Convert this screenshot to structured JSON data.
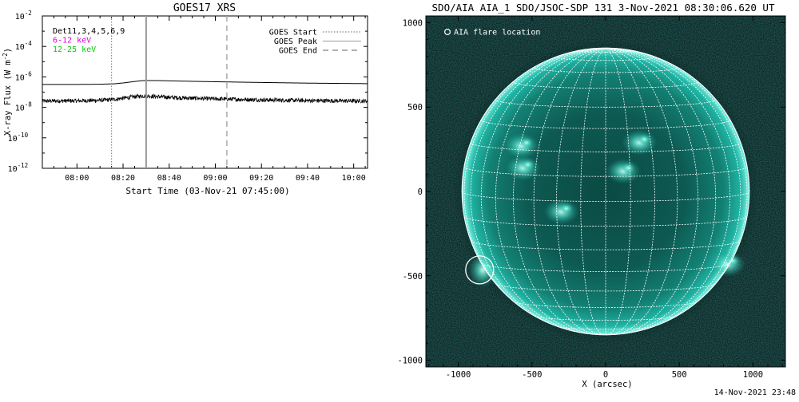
{
  "stamp": "14-Nov-2021 23:48",
  "chart_data": [
    {
      "type": "line",
      "title": "GOES17 XRS",
      "xlabel": "Start Time (03-Nov-21 07:45:00)",
      "ylabel": "X-ray Flux (W m⁻²)",
      "ylabel_base": "X-ray Flux (W m",
      "ylabel_exp": "-2",
      "ylabel_close": ")",
      "log_scale": true,
      "xlim": [
        "07:45",
        "10:06"
      ],
      "ylim": [
        1e-12,
        0.01
      ],
      "x_ticks": [
        "08:00",
        "08:20",
        "08:40",
        "09:00",
        "09:20",
        "09:40",
        "10:00"
      ],
      "y_ticks": [
        {
          "base": "10",
          "exp": "-2",
          "value": 0.01
        },
        {
          "base": "10",
          "exp": "-4",
          "value": 0.0001
        },
        {
          "base": "10",
          "exp": "-6",
          "value": 1e-06
        },
        {
          "base": "10",
          "exp": "-8",
          "value": 1e-08
        },
        {
          "base": "10",
          "exp": "-10",
          "value": 1e-10
        },
        {
          "base": "10",
          "exp": "-12",
          "value": 1e-12
        }
      ],
      "energy_legend": [
        {
          "label": "Det11,3,4,5,6,9",
          "color": "#000000"
        },
        {
          "label": "6-12 keV",
          "color": "#dd00dd"
        },
        {
          "label": "12-25 keV",
          "color": "#00cc00"
        }
      ],
      "marker_legend": [
        {
          "label": "GOES Start",
          "style": "dotted"
        },
        {
          "label": "GOES Peak",
          "style": "solid"
        },
        {
          "label": "GOES End",
          "style": "dashed"
        }
      ],
      "markers": {
        "start": "08:15",
        "peak": "08:30",
        "end": "09:05"
      },
      "series": [
        {
          "name": "",
          "channel": "long",
          "x": [
            "07:45",
            "08:00",
            "08:10",
            "08:16",
            "08:20",
            "08:25",
            "08:28",
            "08:30",
            "08:35",
            "08:45",
            "09:00",
            "09:20",
            "09:40",
            "10:06"
          ],
          "y": [
            3.2e-07,
            3.2e-07,
            3.3e-07,
            3.5e-07,
            4e-07,
            5e-07,
            5.6e-07,
            5.8e-07,
            5.7e-07,
            5.3e-07,
            4.8e-07,
            4.3e-07,
            3.9e-07,
            3.6e-07
          ]
        },
        {
          "name": "",
          "channel": "short",
          "x": [
            "07:45",
            "08:00",
            "08:10",
            "08:16",
            "08:20",
            "08:25",
            "08:28",
            "08:30",
            "08:35",
            "08:45",
            "09:00",
            "09:20",
            "09:40",
            "10:06"
          ],
          "y": [
            2.6e-08,
            2.7e-08,
            2.9e-08,
            3.3e-08,
            4e-08,
            5e-08,
            5.5e-08,
            5.6e-08,
            5e-08,
            4.2e-08,
            3.6e-08,
            3.1e-08,
            2.8e-08,
            2.6e-08
          ]
        }
      ]
    },
    {
      "type": "image",
      "title": "SDO/AIA AIA_1 SDO/JSOC-SDP 131  3-Nov-2021 08:30:06.620 UT",
      "xlabel": "X (arcsec)",
      "ylabel": "",
      "xlim": [
        -1220,
        1220
      ],
      "ylim": [
        -1040,
        1040
      ],
      "x_ticks": [
        -1000,
        -500,
        0,
        500,
        1000
      ],
      "y_ticks": [
        1000,
        500,
        0,
        -500,
        -1000
      ],
      "legend": "AIA flare location",
      "solar_radius_arcsec": 975,
      "flare_location": {
        "x": -855,
        "y": -465,
        "radius": 95
      },
      "colors": {
        "disk": "#00c8b4",
        "background": "#031414",
        "grid": "#ffffff"
      },
      "active_regions": [
        {
          "x": 230,
          "y": 290
        },
        {
          "x": -570,
          "y": 270
        },
        {
          "x": 830,
          "y": -430
        },
        {
          "x": -560,
          "y": 140
        },
        {
          "x": -300,
          "y": -120
        },
        {
          "x": 120,
          "y": 120
        }
      ]
    }
  ]
}
